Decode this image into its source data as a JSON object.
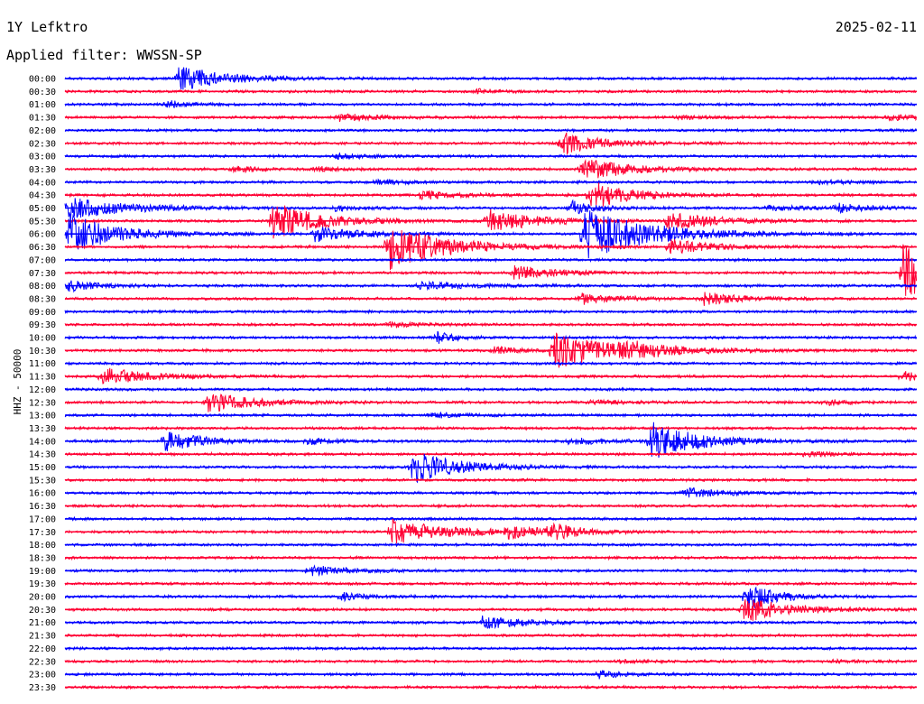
{
  "header": {
    "station": "1Y Lefktro",
    "date": "2025-02-11",
    "filter": "Applied filter: WWSSN-SP"
  },
  "y_axis_label": "HHZ - 50000",
  "colors": {
    "odd_row": "#0000ff",
    "even_row": "#ff0033",
    "background": "#ffffff"
  },
  "chart_data": {
    "type": "line",
    "title": "1Y Lefktro",
    "subtitle": "Applied filter: WWSSN-SP",
    "ylabel": "HHZ - 50000",
    "grid": false,
    "legend": "none",
    "rows": [
      "00:00",
      "00:30",
      "01:00",
      "01:30",
      "02:00",
      "02:30",
      "03:00",
      "03:30",
      "04:00",
      "04:30",
      "05:00",
      "05:30",
      "06:00",
      "06:30",
      "07:00",
      "07:30",
      "08:00",
      "08:30",
      "09:00",
      "09:30",
      "10:00",
      "10:30",
      "11:00",
      "11:30",
      "12:00",
      "12:30",
      "13:00",
      "13:30",
      "14:00",
      "14:30",
      "15:00",
      "15:30",
      "16:00",
      "16:30",
      "17:00",
      "17:30",
      "18:00",
      "18:30",
      "19:00",
      "19:30",
      "20:00",
      "20:30",
      "21:00",
      "21:30",
      "22:00",
      "22:30",
      "23:00",
      "23:30"
    ],
    "x_range_minutes": [
      0,
      30
    ],
    "events": [
      {
        "row": 0,
        "t": 4.0,
        "amp": 1.0,
        "dur": 2.5
      },
      {
        "row": 1,
        "t": 14.5,
        "amp": 0.15,
        "dur": 1.5
      },
      {
        "row": 2,
        "t": 3.6,
        "amp": 0.3,
        "dur": 1.2
      },
      {
        "row": 3,
        "t": 9.6,
        "amp": 0.3,
        "dur": 2.0
      },
      {
        "row": 3,
        "t": 21.5,
        "amp": 0.15,
        "dur": 1.5
      },
      {
        "row": 3,
        "t": 29.0,
        "amp": 0.2,
        "dur": 2.0
      },
      {
        "row": 5,
        "t": 17.5,
        "amp": 0.9,
        "dur": 2.0
      },
      {
        "row": 6,
        "t": 9.4,
        "amp": 0.2,
        "dur": 2.0
      },
      {
        "row": 7,
        "t": 5.9,
        "amp": 0.2,
        "dur": 1.5
      },
      {
        "row": 7,
        "t": 8.8,
        "amp": 0.2,
        "dur": 1.2
      },
      {
        "row": 7,
        "t": 18.2,
        "amp": 0.9,
        "dur": 2.5
      },
      {
        "row": 8,
        "t": 11.0,
        "amp": 0.2,
        "dur": 1.5
      },
      {
        "row": 8,
        "t": 26.5,
        "amp": 0.15,
        "dur": 1.5
      },
      {
        "row": 9,
        "t": 12.5,
        "amp": 0.35,
        "dur": 2.0
      },
      {
        "row": 9,
        "t": 18.5,
        "amp": 1.2,
        "dur": 2.0
      },
      {
        "row": 10,
        "t": 0.1,
        "amp": 0.9,
        "dur": 3.0
      },
      {
        "row": 10,
        "t": 9.5,
        "amp": 0.2,
        "dur": 1.5
      },
      {
        "row": 10,
        "t": 17.8,
        "amp": 0.6,
        "dur": 1.2
      },
      {
        "row": 10,
        "t": 24.7,
        "amp": 0.2,
        "dur": 2.5
      },
      {
        "row": 10,
        "t": 27.2,
        "amp": 0.3,
        "dur": 1.5
      },
      {
        "row": 11,
        "t": 7.3,
        "amp": 1.5,
        "dur": 2.5
      },
      {
        "row": 11,
        "t": 14.9,
        "amp": 0.9,
        "dur": 2.5
      },
      {
        "row": 11,
        "t": 21.2,
        "amp": 0.7,
        "dur": 2.5
      },
      {
        "row": 12,
        "t": 0.1,
        "amp": 1.6,
        "dur": 2.5
      },
      {
        "row": 12,
        "t": 8.8,
        "amp": 0.6,
        "dur": 2.5
      },
      {
        "row": 12,
        "t": 18.3,
        "amp": 2.0,
        "dur": 3.5
      },
      {
        "row": 13,
        "t": 11.4,
        "amp": 1.8,
        "dur": 3.0
      },
      {
        "row": 13,
        "t": 21.3,
        "amp": 0.6,
        "dur": 2.0
      },
      {
        "row": 15,
        "t": 15.8,
        "amp": 0.6,
        "dur": 2.0
      },
      {
        "row": 15,
        "t": 29.5,
        "amp": 2.5,
        "dur": 2.0
      },
      {
        "row": 16,
        "t": 0.1,
        "amp": 0.5,
        "dur": 1.5
      },
      {
        "row": 16,
        "t": 12.5,
        "amp": 0.3,
        "dur": 2.5
      },
      {
        "row": 17,
        "t": 18.2,
        "amp": 0.4,
        "dur": 2.0
      },
      {
        "row": 17,
        "t": 22.5,
        "amp": 0.5,
        "dur": 2.0
      },
      {
        "row": 19,
        "t": 11.4,
        "amp": 0.2,
        "dur": 1.5
      },
      {
        "row": 20,
        "t": 13.1,
        "amp": 0.5,
        "dur": 0.8
      },
      {
        "row": 21,
        "t": 15.1,
        "amp": 0.3,
        "dur": 1.5
      },
      {
        "row": 21,
        "t": 17.2,
        "amp": 1.5,
        "dur": 3.0
      },
      {
        "row": 21,
        "t": 19.6,
        "amp": 0.5,
        "dur": 2.5
      },
      {
        "row": 23,
        "t": 1.3,
        "amp": 0.7,
        "dur": 2.5
      },
      {
        "row": 23,
        "t": 29.5,
        "amp": 0.4,
        "dur": 1.5
      },
      {
        "row": 25,
        "t": 5.0,
        "amp": 0.8,
        "dur": 2.5
      },
      {
        "row": 25,
        "t": 18.5,
        "amp": 0.15,
        "dur": 2.0
      },
      {
        "row": 25,
        "t": 26.8,
        "amp": 0.25,
        "dur": 1.0
      },
      {
        "row": 26,
        "t": 12.8,
        "amp": 0.2,
        "dur": 2.0
      },
      {
        "row": 28,
        "t": 3.5,
        "amp": 0.8,
        "dur": 2.0
      },
      {
        "row": 28,
        "t": 8.5,
        "amp": 0.25,
        "dur": 1.5
      },
      {
        "row": 28,
        "t": 17.7,
        "amp": 0.3,
        "dur": 2.0
      },
      {
        "row": 28,
        "t": 20.6,
        "amp": 1.5,
        "dur": 2.5
      },
      {
        "row": 29,
        "t": 26.0,
        "amp": 0.2,
        "dur": 1.5
      },
      {
        "row": 30,
        "t": 12.2,
        "amp": 1.3,
        "dur": 2.5
      },
      {
        "row": 32,
        "t": 21.8,
        "amp": 0.4,
        "dur": 2.0
      },
      {
        "row": 35,
        "t": 11.5,
        "amp": 1.0,
        "dur": 3.0
      },
      {
        "row": 35,
        "t": 15.6,
        "amp": 0.5,
        "dur": 1.5
      },
      {
        "row": 35,
        "t": 17.1,
        "amp": 0.6,
        "dur": 1.5
      },
      {
        "row": 38,
        "t": 8.6,
        "amp": 0.4,
        "dur": 2.0
      },
      {
        "row": 40,
        "t": 9.7,
        "amp": 0.3,
        "dur": 1.5
      },
      {
        "row": 40,
        "t": 24.0,
        "amp": 1.2,
        "dur": 1.5
      },
      {
        "row": 41,
        "t": 23.9,
        "amp": 1.0,
        "dur": 2.5
      },
      {
        "row": 42,
        "t": 14.7,
        "amp": 0.5,
        "dur": 2.5
      },
      {
        "row": 46,
        "t": 18.8,
        "amp": 0.3,
        "dur": 1.5
      },
      {
        "row": 45,
        "t": 19.5,
        "amp": 0.1,
        "dur": 1.5
      },
      {
        "row": 45,
        "t": 27.0,
        "amp": 0.1,
        "dur": 1.5
      }
    ]
  }
}
